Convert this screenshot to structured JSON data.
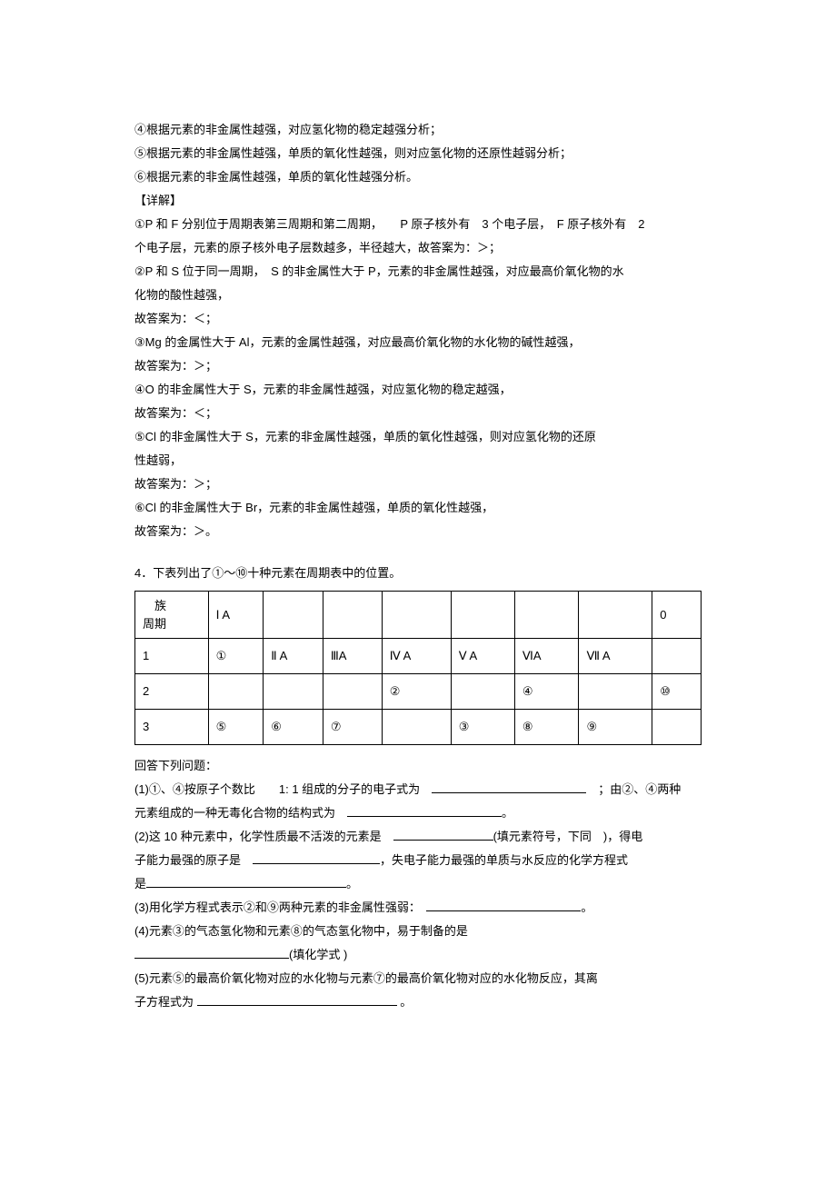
{
  "lines": {
    "l1": "④根据元素的非金属性越强，对应氢化物的稳定越强分析；",
    "l2": "⑤根据元素的非金属性越强，单质的氧化性越强，则对应氢化物的还原性越弱分析；",
    "l3": "⑥根据元素的非金属性越强，单质的氧化性越强分析。",
    "l4": "【详解】",
    "l5": "①P 和 F 分别位于周期表第三周期和第二周期，　　P 原子核外有　3 个电子层，　F 原子核外有　2",
    "l6": "个电子层，元素的原子核外电子层数越多，半径越大，故答案为：＞；",
    "l7": "②P 和 S 位于同一周期，　S 的非金属性大于 P，元素的非金属性越强，对应最高价氧化物的水",
    "l8": "化物的酸性越强，",
    "l9": "故答案为：＜；",
    "l10": "③Mg 的金属性大于 Al，元素的金属性越强，对应最高价氧化物的水化物的碱性越强，",
    "l11": "故答案为：＞；",
    "l12": "④O 的非金属性大于 S，元素的非金属性越强，对应氢化物的稳定越强，",
    "l13": "故答案为：＜；",
    "l14": "⑤Cl 的非金属性大于 S，元素的非金属性越强，单质的氧化性越强，则对应氢化物的还原",
    "l15": "性越弱，",
    "l16": "故答案为：＞；",
    "l17": "⑥Cl 的非金属性大于 Br，元素的非金属性越强，单质的氧化性越强，",
    "l18": "故答案为：＞。"
  },
  "q4_title": "4．下表列出了①～⑩十种元素在周期表中的位置。",
  "table": {
    "header_cell": "　族\n周期",
    "cols": [
      "Ⅰ A",
      "",
      "",
      "",
      "",
      "",
      "",
      "0"
    ],
    "row1_label": "1",
    "row1": [
      "①",
      "Ⅱ A",
      "ⅢA",
      "Ⅳ A",
      "Ⅴ A",
      "ⅥA",
      "Ⅶ A",
      ""
    ],
    "row2_label": "2",
    "row2": [
      "",
      "",
      "",
      "②",
      "",
      "④",
      "",
      "⑩"
    ],
    "row3_label": "3",
    "row3": [
      "⑤",
      "⑥",
      "⑦",
      "",
      "③",
      "⑧",
      "⑨",
      ""
    ]
  },
  "q4": {
    "intro": "回答下列问题：",
    "p1a": "(1)①、④按原子个数比　　1: 1 组成的分子的电子式为　",
    "p1b": "　；由②、④两种",
    "p1c": "元素组成的一种无毒化合物的结构式为　",
    "p1d": "。",
    "p2a": "(2)这 10 种元素中，化学性质最不活泼的元素是　",
    "p2b": "(填元素符号，下同　)，得电",
    "p2c": "子能力最强的原子是　",
    "p2d": "，失电子能力最强的单质与水反应的化学方程式",
    "p2e": "是",
    "p2f": "。",
    "p3a": "(3)用化学方程式表示②和⑨两种元素的非金属性强弱：　",
    "p3b": "。",
    "p4a": "(4)元素③的气态氢化物和元素⑧的气态氢化物中，易于制备的是",
    "p4b": "(填化学式 )",
    "p5a": "(5)元素⑤的最高价氧化物对应的水化物与元素⑦的最高价氧化物对应的水化物反应，其离",
    "p5b": "子方程式为 ",
    "p5c": " 。"
  }
}
